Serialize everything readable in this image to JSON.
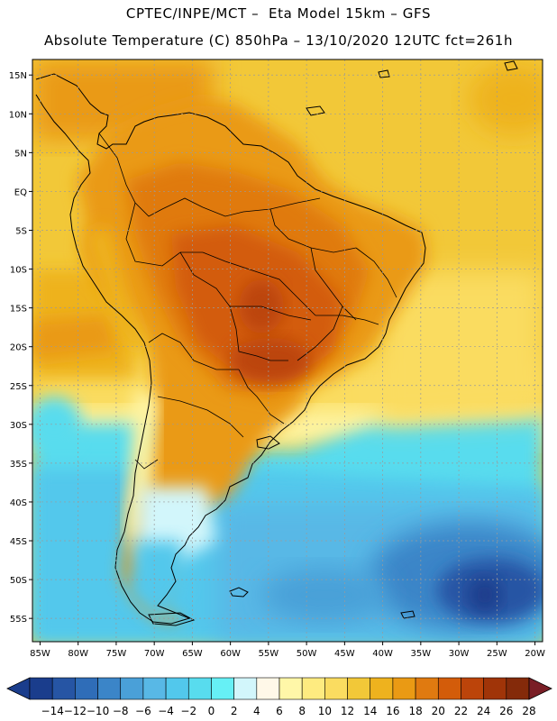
{
  "header": {
    "line1": "CPTEC/INPE/MCT –  Eta Model 15km – GFS",
    "line2": "Absolute Temperature (C) 850hPa – 13/10/2020 12UTC fct=261h"
  },
  "map": {
    "lat_labels": [
      "15N",
      "10N",
      "5N",
      "EQ",
      "5S",
      "10S",
      "15S",
      "20S",
      "25S",
      "30S",
      "35S",
      "40S",
      "45S",
      "50S",
      "55S"
    ],
    "lat_values": [
      15,
      10,
      5,
      0,
      -5,
      -10,
      -15,
      -20,
      -25,
      -30,
      -35,
      -40,
      -45,
      -50,
      -55
    ],
    "lon_labels": [
      "85W",
      "80W",
      "75W",
      "70W",
      "65W",
      "60W",
      "55W",
      "50W",
      "45W",
      "40W",
      "35W",
      "30W",
      "25W",
      "20W"
    ],
    "lon_values": [
      -85,
      -80,
      -75,
      -70,
      -65,
      -60,
      -55,
      -50,
      -45,
      -40,
      -35,
      -30,
      -25,
      -20
    ],
    "lat_range": [
      -58,
      17
    ],
    "lon_range": [
      -86,
      -19
    ]
  },
  "colorbar": {
    "labels": [
      "-14",
      "-12",
      "-10",
      "-8",
      "-6",
      "-4",
      "-2",
      "0",
      "2",
      "4",
      "6",
      "8",
      "10",
      "12",
      "14",
      "16",
      "18",
      "20",
      "22",
      "24",
      "26",
      "28"
    ],
    "colors": [
      "#1a3d8c",
      "#2655a4",
      "#2f6db8",
      "#3b85c8",
      "#4aa0d8",
      "#58b8e6",
      "#52c8ec",
      "#58dcee",
      "#66f0f5",
      "#d2f6fb",
      "#fff8e8",
      "#fff7a8",
      "#feeb80",
      "#fadc60",
      "#f2c838",
      "#eeb21e",
      "#ea9a14",
      "#e07a10",
      "#d35c0a",
      "#bc440a",
      "#a03408",
      "#842a0a"
    ],
    "under_color": "#1a3d8c",
    "over_color": "#7a1e26"
  }
}
